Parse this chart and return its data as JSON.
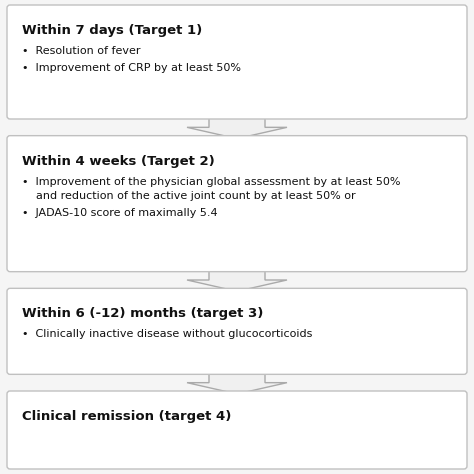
{
  "background_color": "#f5f5f5",
  "box_face_color": "#ffffff",
  "box_edge_color": "#c0c0c0",
  "arrow_face_color": "#f0f0f0",
  "arrow_edge_color": "#aaaaaa",
  "boxes": [
    {
      "title": "Within 7 days (Target 1)",
      "bullets": [
        "Resolution of fever",
        "Improvement of CRP by at least 50%"
      ]
    },
    {
      "title": "Within 4 weeks (Target 2)",
      "line1": "Improvement of the physician global assessment by at least 50%",
      "line2": "and reduction of the active joint count by at least 50% or",
      "bullets": [
        "Improvement of the physician global assessment by at least 50%\nand reduction of the active joint count by at least 50% or",
        "JADAS-10 score of maximally 5.4"
      ]
    },
    {
      "title": "Within 6 (-12) months (target 3)",
      "bullets": [
        "Clinically inactive disease without glucocorticoids"
      ]
    },
    {
      "title": "Clinical remission (target 4)",
      "bullets": []
    }
  ],
  "title_fontsize": 9.5,
  "bullet_fontsize": 8.0,
  "fig_width": 4.74,
  "fig_height": 4.74,
  "dpi": 100
}
